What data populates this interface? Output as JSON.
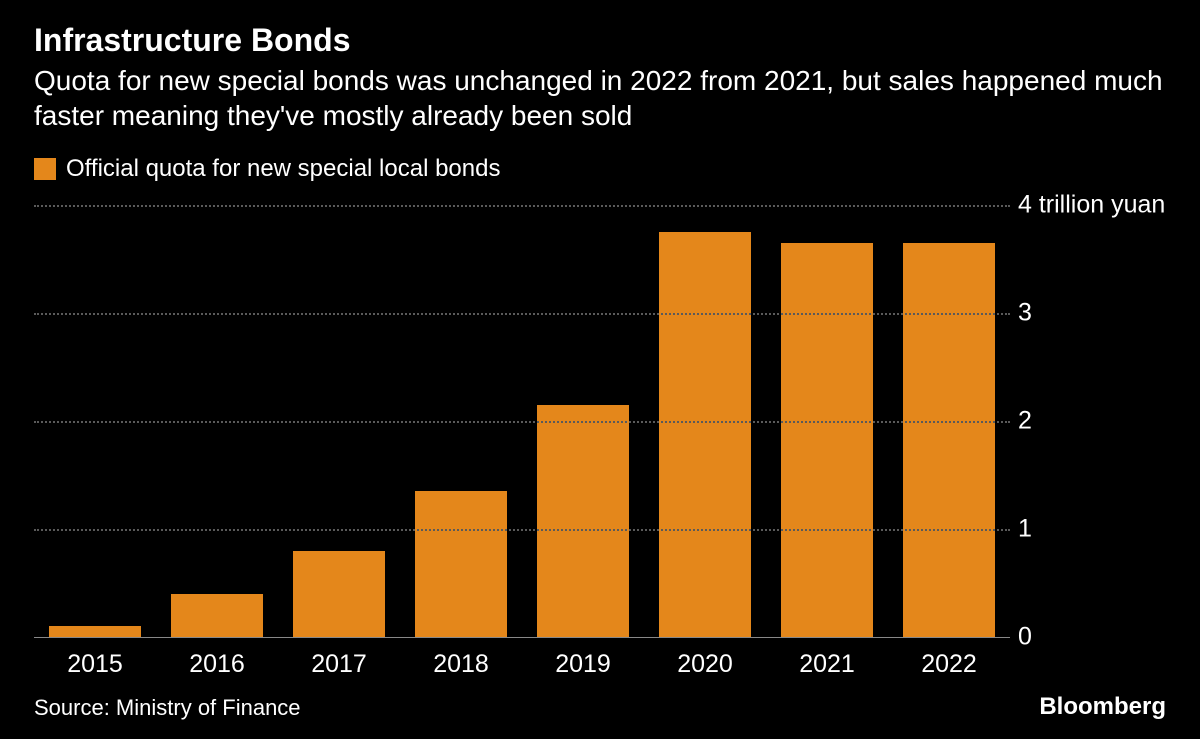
{
  "chart": {
    "type": "bar",
    "title": "Infrastructure Bonds",
    "title_fontsize": 32,
    "title_color": "#ffffff",
    "subtitle": "Quota for new special bonds was unchanged in 2022 from 2021, but sales happened much faster meaning they've mostly already been sold",
    "subtitle_fontsize": 28,
    "subtitle_color": "#ffffff",
    "background_color": "#000000",
    "legend": {
      "swatch_color": "#e4871b",
      "label": "Official quota for new special local bonds",
      "label_fontsize": 24,
      "label_color": "#ffffff"
    },
    "categories": [
      "2015",
      "2016",
      "2017",
      "2018",
      "2019",
      "2020",
      "2021",
      "2022"
    ],
    "values": [
      0.1,
      0.4,
      0.8,
      1.35,
      2.15,
      3.75,
      3.65,
      3.65
    ],
    "bar_color": "#e4871b",
    "bar_width_ratio": 0.76,
    "y": {
      "min": 0,
      "max": 4,
      "ticks": [
        0,
        1,
        2,
        3,
        4
      ],
      "unit_label": "4 trillion yuan",
      "labels_plain": [
        "0",
        "1",
        "2",
        "3"
      ],
      "label_fontsize": 25,
      "label_color": "#ffffff"
    },
    "x_label_fontsize": 25,
    "x_label_color": "#ffffff",
    "grid": {
      "color": "#5a5a5a",
      "style": "dotted",
      "width": 2
    },
    "baseline_color": "#888888"
  },
  "footer": {
    "source": "Source: Ministry of Finance",
    "source_fontsize": 22,
    "brand": "Bloomberg",
    "brand_fontsize": 24
  }
}
